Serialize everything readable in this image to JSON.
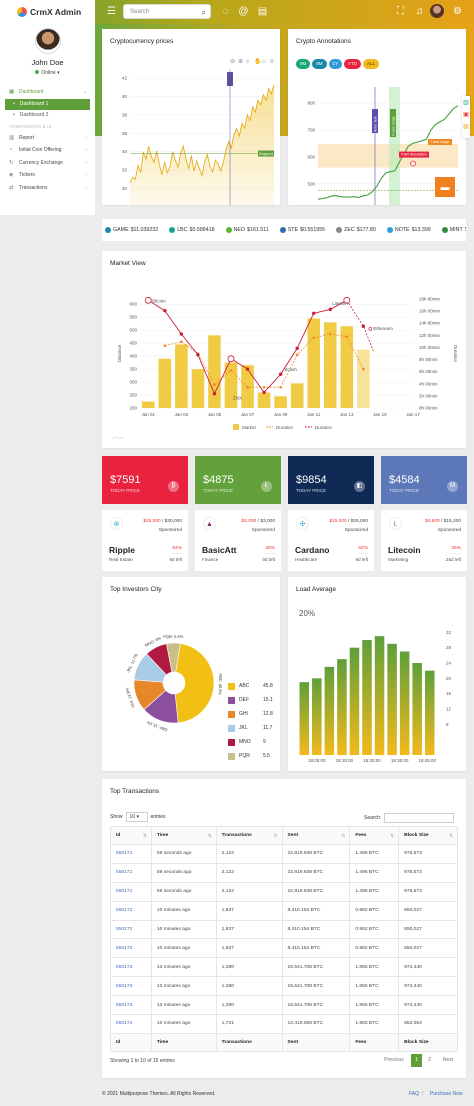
{
  "app": {
    "name": "CrmX Admin"
  },
  "header": {
    "search_placeholder": "Search"
  },
  "sidebar": {
    "user_name": "John Doe",
    "status": "Online ▾",
    "items": [
      {
        "label": "Dashboard",
        "active": true
      },
      {
        "label": "Dashboard 1",
        "sub": true,
        "active": true
      },
      {
        "label": "Dashboard 2",
        "sub": true
      },
      {
        "label": "COMPONENTS & UI",
        "section": true
      },
      {
        "label": "Report"
      },
      {
        "label": "Initial Coin Offering"
      },
      {
        "label": "Currency Exchange"
      },
      {
        "label": "Tickers"
      },
      {
        "label": "Transactions"
      }
    ]
  },
  "cards": {
    "crypto_prices": {
      "title": "Cryptocurrency prices",
      "badge_high": "High",
      "badge_support": "Support"
    },
    "annotations": {
      "title": "Crypto Annotations",
      "tabs": [
        "5M",
        "6M",
        "1Y",
        "YTD",
        "ALL"
      ],
      "labels": {
        "anno_test": "Anno Test",
        "x_axis_range": "X-axis range",
        "track_range": "Track range",
        "point_annotation": "Point Annotation",
        "support": "Support"
      }
    },
    "market": {
      "title": "Market View",
      "legend": [
        "Market",
        "Duration",
        "Duration"
      ],
      "point_labels": {
        "bitcoin": "Bitcoin",
        "litecoin": "Litecoin",
        "ethereum": "Ethereum",
        "zcash": "Zcash",
        "znx": "ZNX"
      }
    },
    "investors": {
      "title": "Top Investors City"
    },
    "load": {
      "title": "Load Average",
      "percent": "20%"
    },
    "transactions": {
      "title": "Top Transactions"
    }
  },
  "ticker": [
    {
      "name": "GAME",
      "price": "$11.039232",
      "color": "#1a8aa8"
    },
    {
      "name": "LBC",
      "price": "$0.588418",
      "color": "#17a28f"
    },
    {
      "name": "NEO",
      "price": "$161.511",
      "color": "#58b82a"
    },
    {
      "name": "STE",
      "price": "$0.551955",
      "color": "#2f6fb0"
    },
    {
      "name": "ZEC",
      "price": "$177.80",
      "color": "#888888"
    },
    {
      "name": "NOTE",
      "price": "$13.399",
      "color": "#2f9fd8"
    },
    {
      "name": "MINT",
      "price": "$0.000861",
      "color": "#2c8c3c"
    }
  ],
  "stats": [
    {
      "value": "$7591",
      "label": "TODAY PRICE",
      "color": "#e8223f",
      "icon": "₿"
    },
    {
      "value": "$4875",
      "label": "TODAY PRICE",
      "color": "#63a13a",
      "icon": "Ł"
    },
    {
      "value": "$9854",
      "label": "TODAY PRICE",
      "color": "#0f2a55",
      "icon": "◧"
    },
    {
      "value": "$4584",
      "label": "TODAY PRICE",
      "color": "#5d78b8",
      "icon": "M"
    }
  ],
  "coins": [
    {
      "name": "Ripple",
      "category": "Real Estate",
      "raised": "$25,000",
      "goal": "$30,000",
      "sponsored": "Sponsored",
      "percent": "84%",
      "days": "9d left",
      "icon_color": "#2ea8e0",
      "icon": "⊛"
    },
    {
      "name": "BasicAtt",
      "category": "Finance",
      "raised": "$2,000",
      "goal": "$3,000",
      "sponsored": "Sponsored",
      "percent": "40%",
      "days": "0d left",
      "icon_color": "#7a2a6a",
      "icon": "▲"
    },
    {
      "name": "Cardano",
      "category": "Healthcare",
      "raised": "$15,000",
      "goal": "$25,000",
      "sponsored": "Sponsored",
      "percent": "62%",
      "days": "9d left",
      "icon_color": "#2aa8d8",
      "icon": "✣"
    },
    {
      "name": "Litecoin",
      "category": "Marketing",
      "raised": "$4,600",
      "goal": "$15,200",
      "sponsored": "Sponsored",
      "percent": "35%",
      "days": "25d left",
      "icon_color": "#999999",
      "icon": "Ł"
    }
  ],
  "table": {
    "show_label": "Show",
    "entries_value": "10",
    "entries_label": "entries",
    "search_label": "Search:",
    "headers": [
      "Id",
      "Time",
      "Transactions",
      "Sent",
      "Fees",
      "Block Size"
    ],
    "rows": [
      [
        "550171",
        "59 seconds ago",
        "2,122",
        "22,819.638 BTC",
        "1.496 BTC",
        "975,573"
      ],
      [
        "550171",
        "59 seconds ago",
        "2,122",
        "22,819.638 BTC",
        "1.496 BTC",
        "975,573"
      ],
      [
        "550171",
        "59 seconds ago",
        "2,122",
        "22,819.638 BTC",
        "1.496 BTC",
        "975,573"
      ],
      [
        "550172",
        "10 minutes ago",
        "1,837",
        "8,410.154 BTC",
        "0.982 BTC",
        "850,027"
      ],
      [
        "550172",
        "10 minutes ago",
        "1,837",
        "8,410.154 BTC",
        "0.982 BTC",
        "850,027"
      ],
      [
        "550172",
        "10 minutes ago",
        "1,837",
        "8,410.154 BTC",
        "0.982 BTC",
        "850,027"
      ],
      [
        "550173",
        "13 minutes ago",
        "1,280",
        "15,541.708 BTC",
        "1.855 BTC",
        "974,440"
      ],
      [
        "550173",
        "13 minutes ago",
        "1,280",
        "15,541.708 BTC",
        "1.855 BTC",
        "974,440"
      ],
      [
        "550173",
        "13 minutes ago",
        "1,280",
        "15,541.708 BTC",
        "1.855 BTC",
        "974,440"
      ],
      [
        "550174",
        "10 minutes ago",
        "1,731",
        "10,419.006 BTC",
        "1.963 BTC",
        "852,054"
      ]
    ],
    "info": "Showing 1 to 10 of 15 entries",
    "prev": "Previous",
    "page1": "1",
    "page2": "2",
    "next": "Next"
  },
  "footer": {
    "copyright": "© 2021 Multipurpose Themes. All Rights Reserved.",
    "faq": "FAQ",
    "sep": "/",
    "purchase": "Purchase Now"
  },
  "chart_data": [
    {
      "type": "area",
      "title": "Cryptocurrency prices",
      "x_ticks": [
        "Mar '12",
        "May '12",
        "Jul '12",
        "Sep '12",
        "Nov '12",
        "2013"
      ],
      "y_ticks": [
        28,
        30,
        32,
        34,
        36,
        38,
        40,
        42
      ],
      "ylim": [
        27,
        43
      ],
      "values": [
        30.6,
        31.2,
        31.0,
        32.5,
        31.8,
        33.9,
        33.2,
        34.6,
        33.5,
        32.8,
        34.1,
        32.6,
        31.5,
        32.9,
        31.7,
        32.4,
        34.0,
        33.1,
        32.3,
        33.8,
        34.6,
        33.2,
        32.1,
        33.6,
        31.9,
        33.0,
        32.2,
        31.4,
        32.9,
        33.7,
        32.4,
        31.8,
        33.1,
        32.7,
        31.9,
        32.8,
        34.2,
        35.1,
        34.4,
        35.9,
        36.5,
        35.7,
        37.1,
        36.6,
        38.0,
        37.4,
        38.9,
        38.3,
        39.6,
        39.1,
        40.2,
        39.6,
        40.9,
        40.3,
        41.3
      ]
    },
    {
      "type": "line",
      "title": "Crypto Annotations",
      "x_ticks": [
        "13 Nov",
        "15 Nov",
        "17 Nov",
        "19 Nov",
        "21 Nov",
        "23 Nov",
        "25 Nov",
        "27 Nov",
        "29 Nov",
        "01 Dec",
        "03 Dec"
      ],
      "y_ticks": [
        400,
        500,
        600,
        700,
        800
      ],
      "ylim": [
        380,
        860
      ],
      "values": [
        442,
        445,
        448,
        454,
        456,
        452,
        451,
        450,
        452,
        449,
        455,
        458,
        470,
        490,
        520,
        540,
        545,
        548,
        580,
        610,
        640,
        650,
        655,
        660,
        665,
        700,
        720,
        730,
        740,
        760,
        780,
        790
      ]
    },
    {
      "type": "bar",
      "title": "Market View",
      "categories": [
        "Jan 01",
        "Jan 02",
        "Jan 03",
        "Jan 04",
        "Jan 05",
        "Jan 06",
        "Jan 07",
        "Jan 08",
        "Jan 09",
        "Jan 10",
        "Jan 11",
        "Jan 12",
        "Jan 13",
        "Jan 14"
      ],
      "x_ticks": [
        "Jan 01",
        "Jan 03",
        "Jan 05",
        "Jan 07",
        "Jan 09",
        "Jan 11",
        "Jan 13",
        "Jan 15",
        "Jan 17"
      ],
      "y_ticks": [
        200,
        250,
        300,
        350,
        400,
        450,
        500,
        550,
        600
      ],
      "ylabel": "Distance",
      "ylim": [
        200,
        620
      ],
      "y2_ticks": [
        "0h 00min",
        "2h 00min",
        "4h 00min",
        "6h 00min",
        "8h 00min",
        "10h 00min",
        "12h 00min",
        "14h 00min",
        "16h 00min",
        "18h 00min"
      ],
      "y2label": "Duration",
      "series": [
        {
          "name": "Market",
          "values": [
            225,
            390,
            445,
            350,
            480,
            375,
            365,
            260,
            245,
            295,
            545,
            530,
            515,
            425
          ]
        },
        {
          "name": "Duration",
          "values": [
            null,
            440,
            455,
            410,
            290,
            345,
            280,
            280,
            280,
            405,
            470,
            485,
            475,
            350
          ]
        },
        {
          "name": "Duration",
          "values": [
            615,
            575,
            485,
            405,
            255,
            390,
            350,
            260,
            330,
            430,
            565,
            580,
            615,
            515
          ]
        }
      ]
    },
    {
      "type": "pie",
      "title": "Top Investors City",
      "categories": [
        "ABC",
        "DEF",
        "GHI",
        "JKL",
        "MNO",
        "PQR"
      ],
      "values": [
        45.8,
        15.1,
        12.8,
        11.7,
        9.0,
        5.5
      ],
      "colors": [
        "#f2c015",
        "#8b4f9e",
        "#e8862a",
        "#a8cbe8",
        "#b01a40",
        "#c8c088"
      ]
    },
    {
      "type": "bar",
      "title": "Load Average",
      "categories": [
        "b1",
        "b2",
        "b3",
        "b4",
        "b5",
        "b6",
        "b7",
        "b8",
        "b9",
        "b10",
        "b11"
      ],
      "x_ticks": [
        "18:05:00",
        "18:15:00",
        "18:25:00",
        "18:35:00",
        "18:45:00"
      ],
      "y_ticks": [
        8,
        12,
        16,
        20,
        24,
        28,
        32
      ],
      "ylim": [
        0,
        36
      ],
      "values": [
        19,
        20,
        23,
        25,
        28,
        30,
        31,
        29,
        27,
        24,
        22
      ]
    }
  ]
}
